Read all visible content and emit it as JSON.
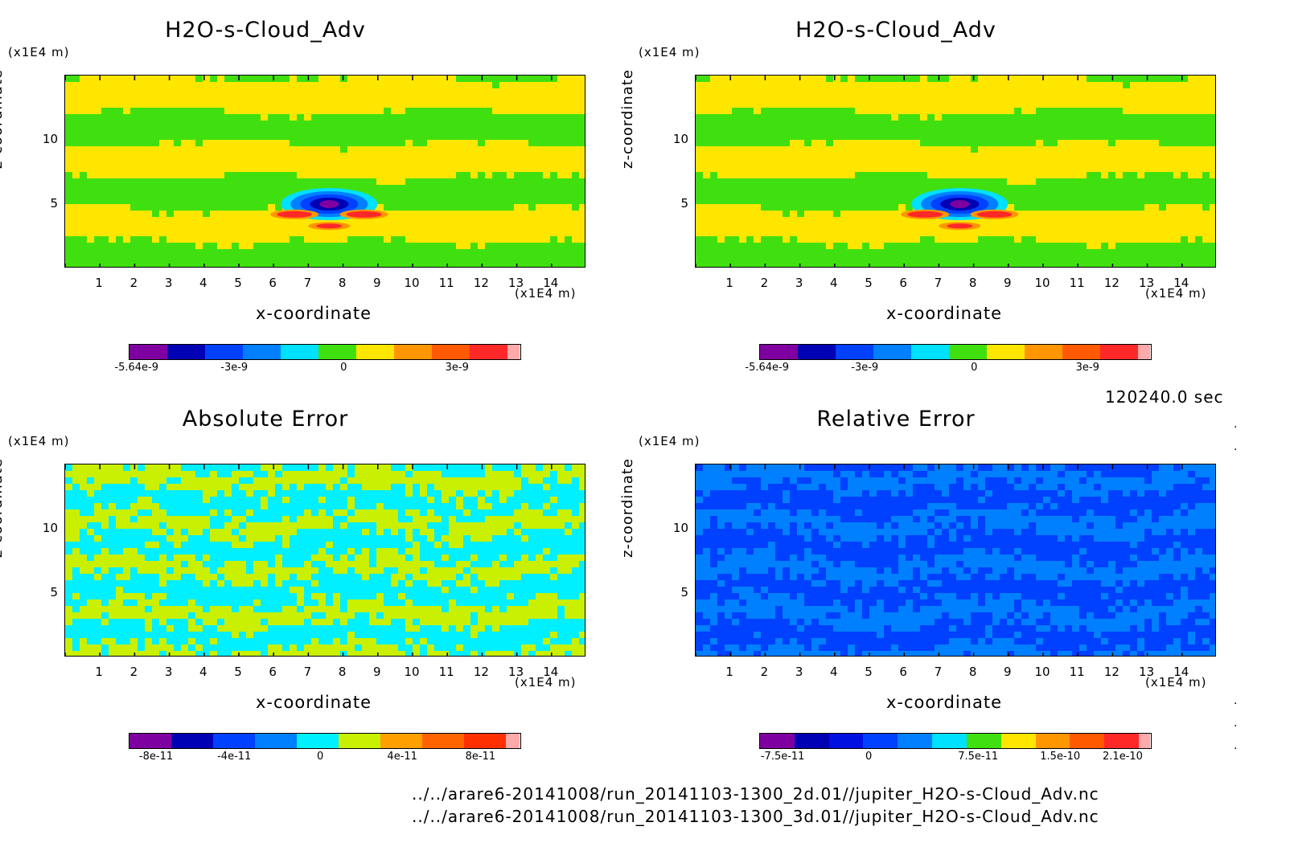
{
  "figure": {
    "time_label": "120240.0 sec",
    "file1": "../../arare6-20141008/run_20141103-1300_2d.01//jupiter_H2O-s-Cloud_Adv.nc",
    "file2": "../../arare6-20141008/run_20141103-1300_3d.01//jupiter_H2O-s-Cloud_Adv.nc"
  },
  "chart_data": [
    {
      "type": "heatmap",
      "title": "H2O-s-Cloud_Adv",
      "xlabel": "x-coordinate",
      "ylabel": "z-coordinate",
      "x_unit": "(x1E4 m)",
      "y_unit": "(x1E4 m)",
      "x_ticks": [
        "1",
        "2",
        "3",
        "4",
        "5",
        "6",
        "7",
        "8",
        "9",
        "10",
        "11",
        "12",
        "13",
        "14"
      ],
      "y_ticks": [
        "5",
        "10"
      ],
      "xlim": [
        0,
        15
      ],
      "ylim": [
        0,
        15
      ],
      "colorbar": {
        "colors": [
          "#7f00a0",
          "#0000b4",
          "#0040ff",
          "#0080ff",
          "#00e0ff",
          "#40e010",
          "#ffe600",
          "#ff9600",
          "#ff5a00",
          "#ff2828",
          "#ffaaaa"
        ],
        "tick_labels": [
          "-5.64e-9",
          "-3e-9",
          "0",
          "3e-9"
        ]
      }
    },
    {
      "type": "heatmap",
      "title": "H2O-s-Cloud_Adv",
      "xlabel": "x-coordinate",
      "ylabel": "z-coordinate",
      "x_unit": "(x1E4 m)",
      "y_unit": "(x1E4 m)",
      "x_ticks": [
        "1",
        "2",
        "3",
        "4",
        "5",
        "6",
        "7",
        "8",
        "9",
        "10",
        "11",
        "12",
        "13",
        "14"
      ],
      "y_ticks": [
        "5",
        "10"
      ],
      "xlim": [
        0,
        15
      ],
      "ylim": [
        0,
        15
      ],
      "colorbar": {
        "colors": [
          "#7f00a0",
          "#0000b4",
          "#0040ff",
          "#0080ff",
          "#00e0ff",
          "#40e010",
          "#ffe600",
          "#ff9600",
          "#ff5a00",
          "#ff2828",
          "#ffaaaa"
        ],
        "tick_labels": [
          "-5.64e-9",
          "-3e-9",
          "0",
          "3e-9"
        ]
      }
    },
    {
      "type": "heatmap",
      "title": "Absolute Error",
      "xlabel": "x-coordinate",
      "ylabel": "z-coordinate",
      "x_unit": "(x1E4 m)",
      "y_unit": "(x1E4 m)",
      "x_ticks": [
        "1",
        "2",
        "3",
        "4",
        "5",
        "6",
        "7",
        "8",
        "9",
        "10",
        "11",
        "12",
        "13",
        "14"
      ],
      "y_ticks": [
        "5",
        "10"
      ],
      "xlim": [
        0,
        15
      ],
      "ylim": [
        0,
        15
      ],
      "colorbar": {
        "colors": [
          "#7f00a0",
          "#0000b4",
          "#0040ff",
          "#0080ff",
          "#00f0ff",
          "#c8f000",
          "#ffa000",
          "#ff6400",
          "#ff3000",
          "#ffaaaa"
        ],
        "tick_labels": [
          "-8e-11",
          "-4e-11",
          "0",
          "4e-11",
          "8e-11"
        ]
      }
    },
    {
      "type": "heatmap",
      "title": "Relative Error",
      "xlabel": "x-coordinate",
      "ylabel": "z-coordinate",
      "x_unit": "(x1E4 m)",
      "y_unit": "(x1E4 m)",
      "x_ticks": [
        "1",
        "2",
        "3",
        "4",
        "5",
        "6",
        "7",
        "8",
        "9",
        "10",
        "11",
        "12",
        "13",
        "14"
      ],
      "y_ticks": [
        "5",
        "10"
      ],
      "xlim": [
        0,
        15
      ],
      "ylim": [
        0,
        15
      ],
      "colorbar": {
        "colors": [
          "#7f00a0",
          "#0000b4",
          "#0010e0",
          "#0040ff",
          "#0080ff",
          "#00e0ff",
          "#40e010",
          "#ffe600",
          "#ff9600",
          "#ff5a00",
          "#ff2828",
          "#ffaaaa"
        ],
        "tick_labels": [
          "-7.5e-11",
          "0",
          "7.5e-11",
          "1.5e-10",
          "2.1e-10"
        ]
      }
    }
  ]
}
